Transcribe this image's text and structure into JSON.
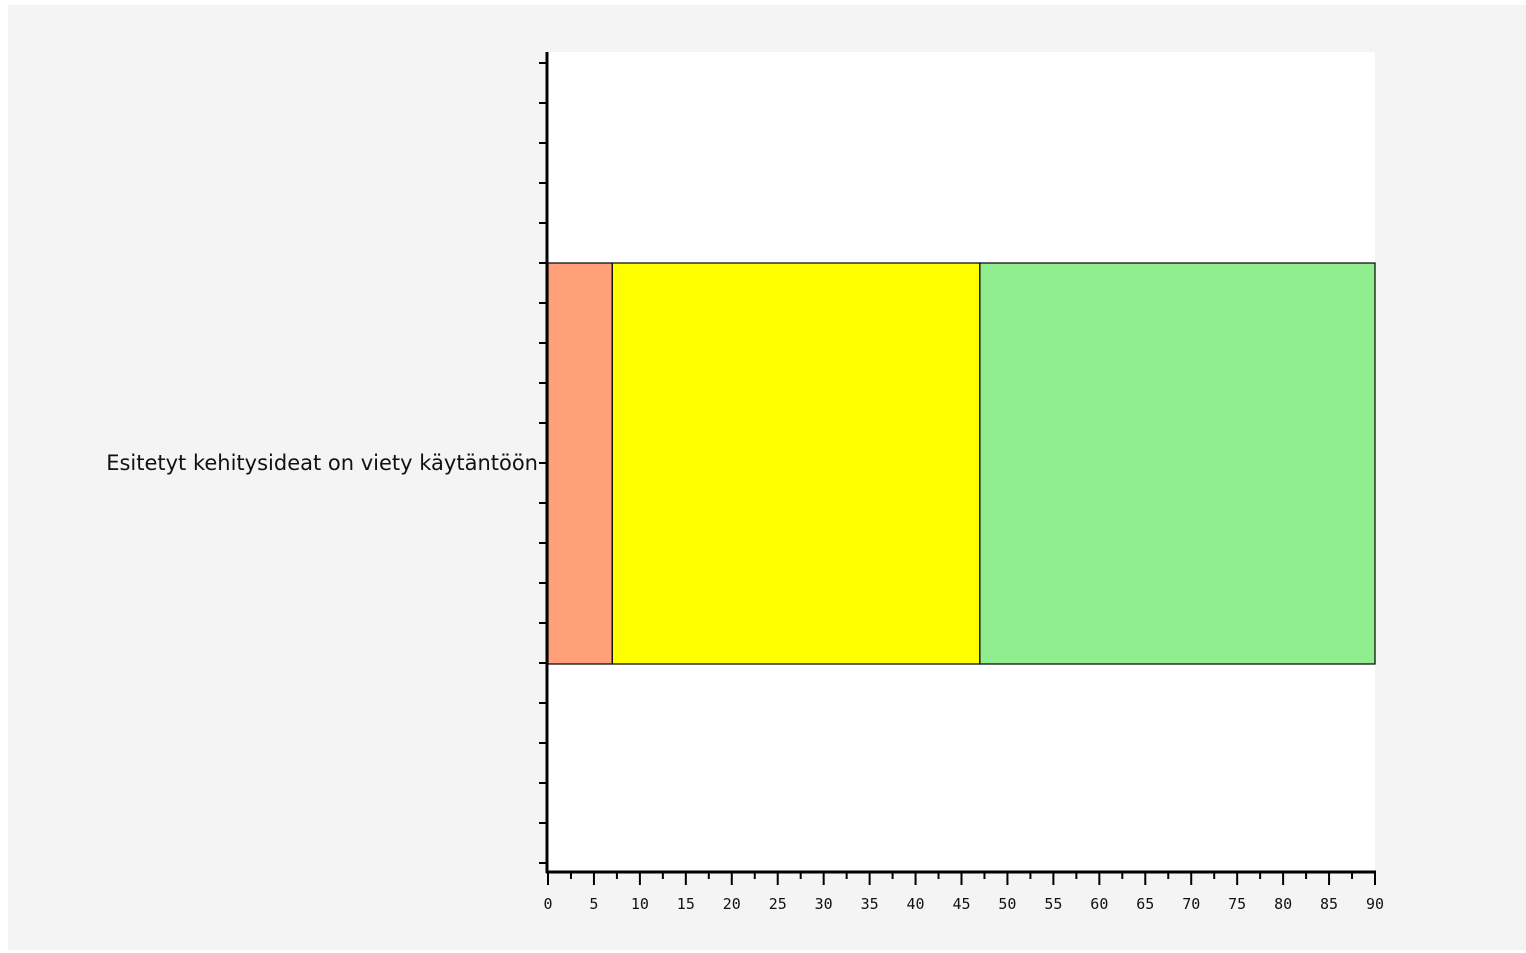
{
  "chart_data": {
    "type": "bar",
    "orientation": "horizontal",
    "stacked": true,
    "categories": [
      "Esitetyt kehitysideat on viety käytäntöön"
    ],
    "series": [
      {
        "values": [
          7
        ],
        "color": "#ffa07a"
      },
      {
        "values": [
          40
        ],
        "color": "#ffff00"
      },
      {
        "values": [
          43
        ],
        "color": "#90ee90"
      }
    ],
    "xlim": [
      0,
      90
    ],
    "xticks": [
      "0",
      "5",
      "10",
      "15",
      "20",
      "25",
      "30",
      "35",
      "40",
      "45",
      "50",
      "55",
      "60",
      "65",
      "70",
      "75",
      "80",
      "85",
      "90"
    ],
    "grid": false,
    "title": "",
    "xlabel": "",
    "ylabel": ""
  },
  "colors": {
    "background": "#f4f4f4",
    "plot_area": "#ffffff",
    "axis": "#000000"
  }
}
